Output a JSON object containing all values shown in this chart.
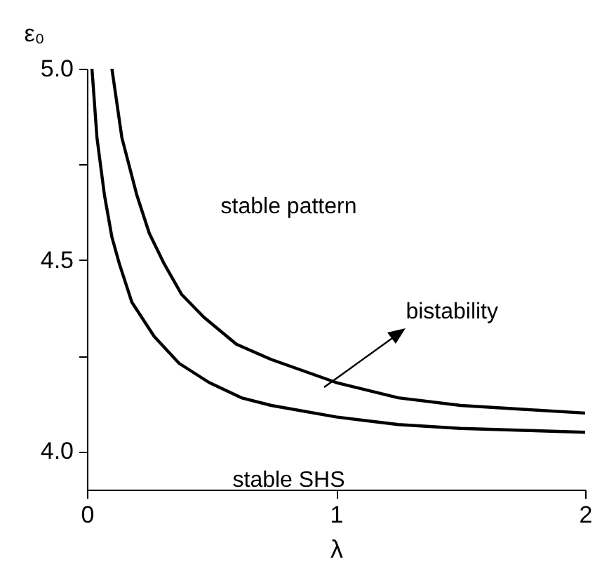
{
  "chart_data": {
    "type": "line",
    "xlabel": "λ",
    "ylabel": "ε₀",
    "xlim": [
      0,
      2
    ],
    "xticks": [
      0,
      1,
      2
    ],
    "ylim": [
      3.9,
      5.0
    ],
    "yticks": [
      {
        "value": 4.0,
        "label": "4.0"
      },
      {
        "value": 4.25,
        "label": null
      },
      {
        "value": 4.5,
        "label": "4.5"
      },
      {
        "value": 4.75,
        "label": null
      },
      {
        "value": 5.0,
        "label": "5.0"
      }
    ],
    "series": [
      {
        "color": "#000000",
        "x": [
          0.02,
          0.04,
          0.07,
          0.1,
          0.13,
          0.18,
          0.27,
          0.37,
          0.49,
          0.62,
          0.74,
          1.0,
          1.25,
          1.5,
          1.75,
          2.0
        ],
        "values": [
          5.0,
          4.82,
          4.67,
          4.56,
          4.49,
          4.39,
          4.3,
          4.23,
          4.18,
          4.14,
          4.12,
          4.09,
          4.07,
          4.06,
          4.055,
          4.05
        ]
      },
      {
        "color": "#000000",
        "x": [
          0.1,
          0.14,
          0.2,
          0.25,
          0.31,
          0.38,
          0.47,
          0.6,
          0.74,
          1.0,
          1.25,
          1.5,
          1.75,
          2.0
        ],
        "values": [
          5.0,
          4.82,
          4.67,
          4.57,
          4.49,
          4.41,
          4.35,
          4.28,
          4.24,
          4.18,
          4.14,
          4.12,
          4.11,
          4.1
        ]
      }
    ],
    "annotations": [
      "stable pattern",
      "bistability",
      "stable SHS"
    ],
    "legend": false,
    "grid": false,
    "line_style": "solid",
    "marker": "none"
  }
}
